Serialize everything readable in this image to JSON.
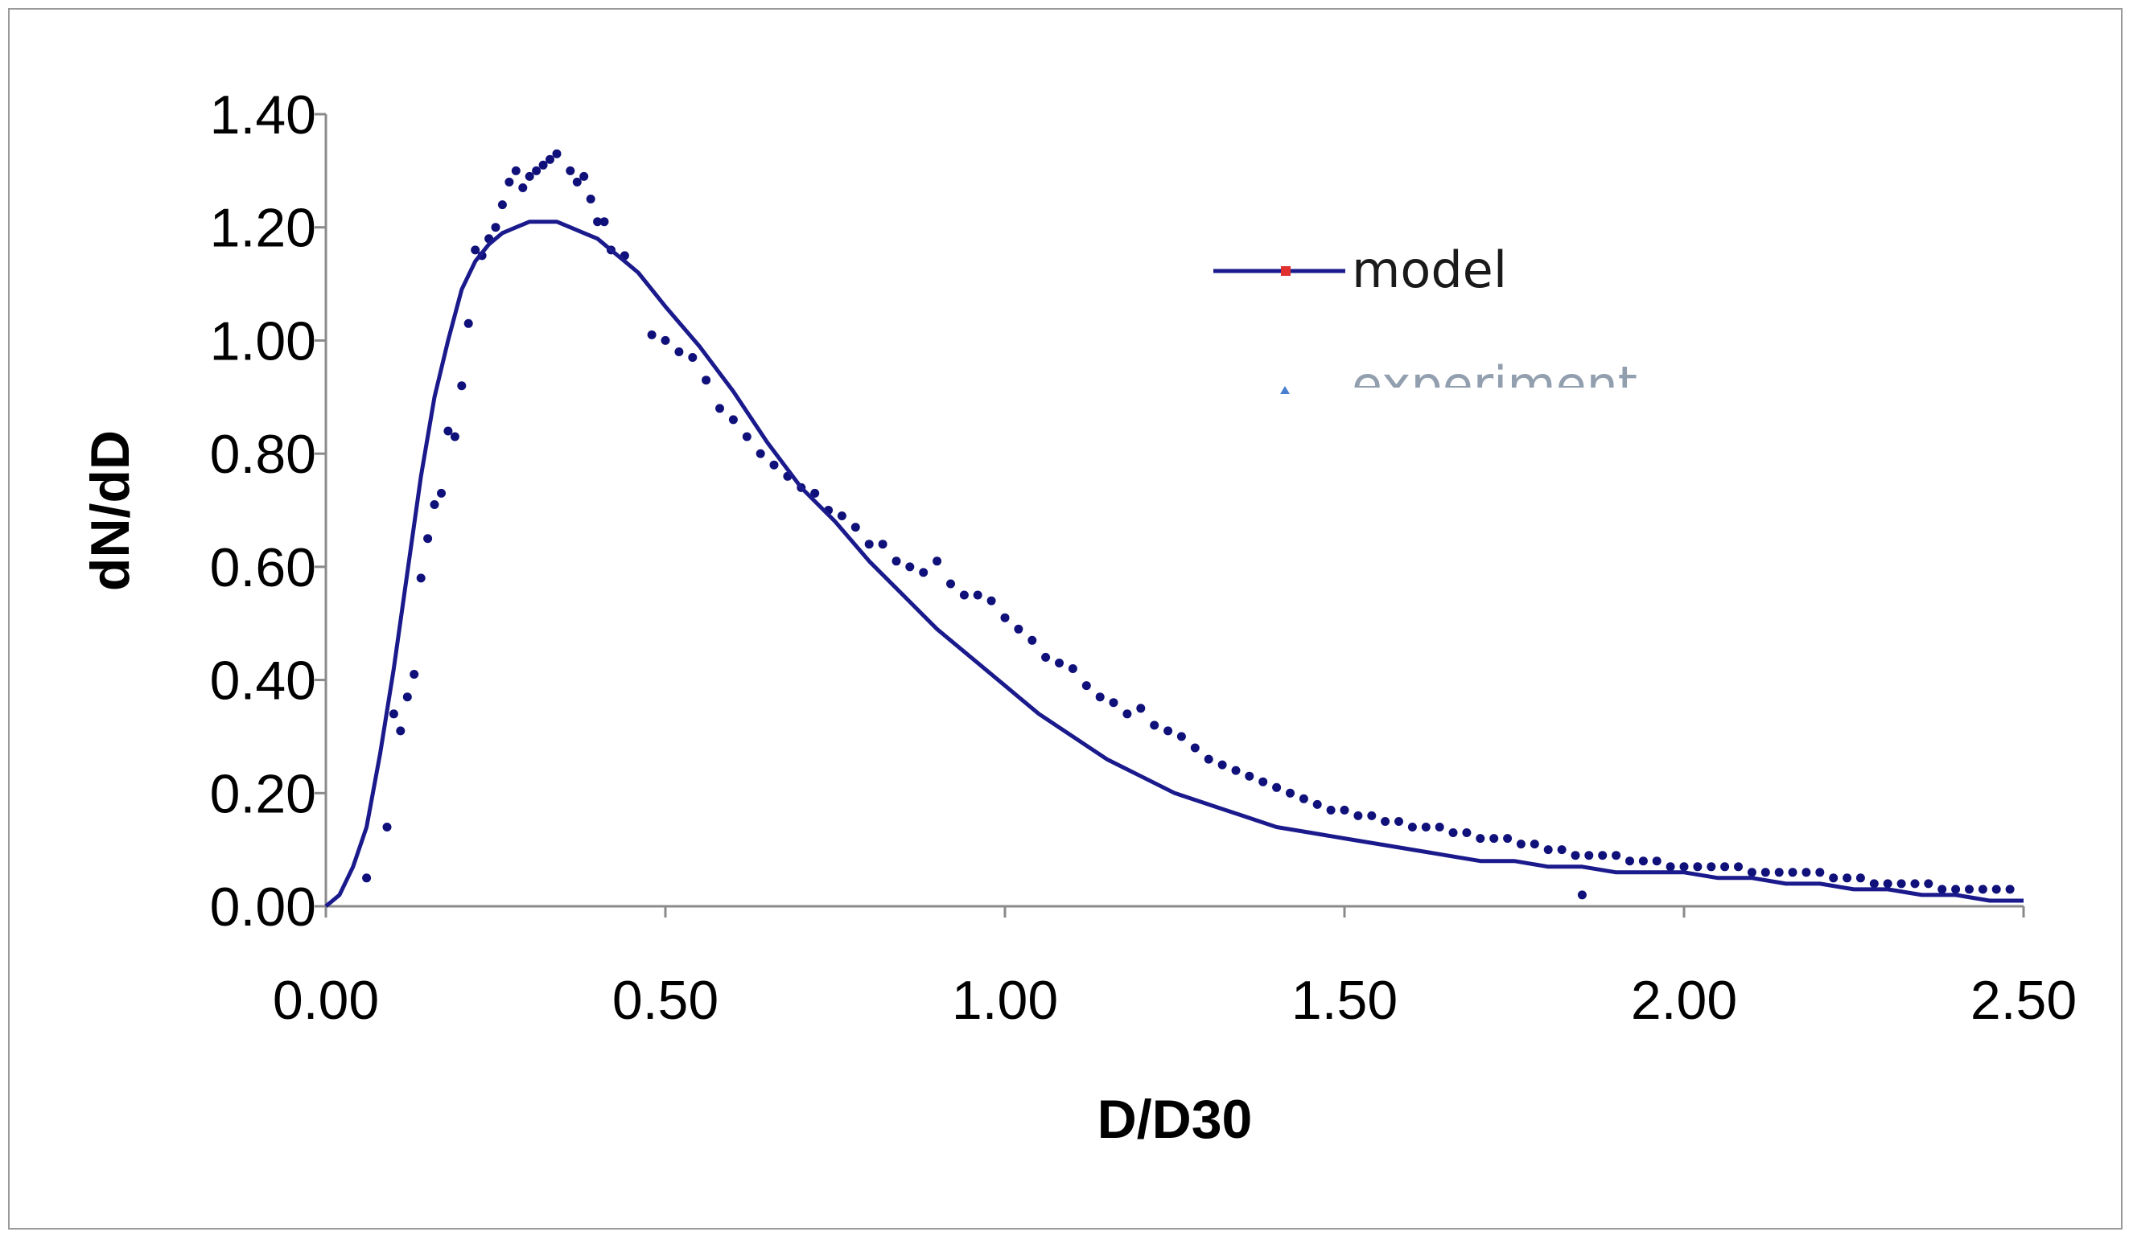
{
  "chart_data": {
    "type": "line",
    "title": "",
    "xlabel": "D/D30",
    "ylabel": "dN/dD",
    "xlim": [
      0,
      2.5
    ],
    "ylim": [
      0,
      1.4
    ],
    "x_ticks": [
      "0.00",
      "0.50",
      "1.00",
      "1.50",
      "2.00",
      "2.50"
    ],
    "y_ticks": [
      "0.00",
      "0.20",
      "0.40",
      "0.60",
      "0.80",
      "1.00",
      "1.20",
      "1.40"
    ],
    "grid": false,
    "legend_position": "upper-right",
    "colors": {
      "model_line": "#1a1a8c",
      "experiment_points": "#10107a",
      "legend_marker_model": "#e03030",
      "legend_marker_experiment": "#4a7fd0"
    },
    "series": [
      {
        "name": "model",
        "kind": "line",
        "x": [
          0.0,
          0.02,
          0.04,
          0.06,
          0.08,
          0.1,
          0.12,
          0.14,
          0.16,
          0.18,
          0.2,
          0.22,
          0.24,
          0.26,
          0.28,
          0.3,
          0.32,
          0.34,
          0.36,
          0.38,
          0.4,
          0.42,
          0.44,
          0.46,
          0.48,
          0.5,
          0.55,
          0.6,
          0.65,
          0.7,
          0.75,
          0.8,
          0.85,
          0.9,
          0.95,
          1.0,
          1.05,
          1.1,
          1.15,
          1.2,
          1.25,
          1.3,
          1.35,
          1.4,
          1.45,
          1.5,
          1.55,
          1.6,
          1.65,
          1.7,
          1.75,
          1.8,
          1.85,
          1.9,
          1.95,
          2.0,
          2.05,
          2.1,
          2.15,
          2.2,
          2.25,
          2.3,
          2.35,
          2.4,
          2.45,
          2.5
        ],
        "y": [
          0.0,
          0.02,
          0.07,
          0.14,
          0.27,
          0.42,
          0.59,
          0.76,
          0.9,
          1.0,
          1.09,
          1.14,
          1.17,
          1.19,
          1.2,
          1.21,
          1.21,
          1.21,
          1.2,
          1.19,
          1.18,
          1.16,
          1.14,
          1.12,
          1.09,
          1.06,
          0.99,
          0.91,
          0.82,
          0.74,
          0.68,
          0.61,
          0.55,
          0.49,
          0.44,
          0.39,
          0.34,
          0.3,
          0.26,
          0.23,
          0.2,
          0.18,
          0.16,
          0.14,
          0.13,
          0.12,
          0.11,
          0.1,
          0.09,
          0.08,
          0.08,
          0.07,
          0.07,
          0.06,
          0.06,
          0.06,
          0.05,
          0.05,
          0.04,
          0.04,
          0.03,
          0.03,
          0.02,
          0.02,
          0.01,
          0.01
        ]
      },
      {
        "name": "experiment",
        "kind": "scatter",
        "x": [
          0.06,
          0.09,
          0.1,
          0.11,
          0.12,
          0.13,
          0.14,
          0.15,
          0.16,
          0.17,
          0.18,
          0.19,
          0.2,
          0.21,
          0.22,
          0.23,
          0.24,
          0.25,
          0.26,
          0.27,
          0.28,
          0.29,
          0.3,
          0.31,
          0.32,
          0.33,
          0.34,
          0.36,
          0.37,
          0.38,
          0.39,
          0.4,
          0.41,
          0.42,
          0.44,
          0.48,
          0.5,
          0.52,
          0.54,
          0.56,
          0.58,
          0.6,
          0.62,
          0.64,
          0.66,
          0.68,
          0.7,
          0.72,
          0.74,
          0.76,
          0.78,
          0.8,
          0.82,
          0.84,
          0.86,
          0.88,
          0.9,
          0.92,
          0.94,
          0.96,
          0.98,
          1.0,
          1.02,
          1.04,
          1.06,
          1.08,
          1.1,
          1.12,
          1.14,
          1.16,
          1.18,
          1.2,
          1.22,
          1.24,
          1.26,
          1.28,
          1.3,
          1.32,
          1.34,
          1.36,
          1.38,
          1.4,
          1.42,
          1.44,
          1.46,
          1.48,
          1.5,
          1.52,
          1.54,
          1.56,
          1.58,
          1.6,
          1.62,
          1.64,
          1.66,
          1.68,
          1.7,
          1.72,
          1.74,
          1.76,
          1.78,
          1.8,
          1.82,
          1.84,
          1.85,
          1.86,
          1.88,
          1.9,
          1.92,
          1.94,
          1.96,
          1.98,
          2.0,
          2.02,
          2.04,
          2.06,
          2.08,
          2.1,
          2.12,
          2.14,
          2.16,
          2.18,
          2.2,
          2.22,
          2.24,
          2.26,
          2.28,
          2.3,
          2.32,
          2.34,
          2.36,
          2.38,
          2.4,
          2.42,
          2.44,
          2.46,
          2.48
        ],
        "y": [
          0.05,
          0.14,
          0.34,
          0.31,
          0.37,
          0.41,
          0.58,
          0.65,
          0.71,
          0.73,
          0.84,
          0.83,
          0.92,
          1.03,
          1.16,
          1.15,
          1.18,
          1.2,
          1.24,
          1.28,
          1.3,
          1.27,
          1.29,
          1.3,
          1.31,
          1.32,
          1.33,
          1.3,
          1.28,
          1.29,
          1.25,
          1.21,
          1.21,
          1.16,
          1.15,
          1.01,
          1.0,
          0.98,
          0.97,
          0.93,
          0.88,
          0.86,
          0.83,
          0.8,
          0.78,
          0.76,
          0.74,
          0.73,
          0.7,
          0.69,
          0.67,
          0.64,
          0.64,
          0.61,
          0.6,
          0.59,
          0.61,
          0.57,
          0.55,
          0.55,
          0.54,
          0.51,
          0.49,
          0.47,
          0.44,
          0.43,
          0.42,
          0.39,
          0.37,
          0.36,
          0.34,
          0.35,
          0.32,
          0.31,
          0.3,
          0.28,
          0.26,
          0.25,
          0.24,
          0.23,
          0.22,
          0.21,
          0.2,
          0.19,
          0.18,
          0.17,
          0.17,
          0.16,
          0.16,
          0.15,
          0.15,
          0.14,
          0.14,
          0.14,
          0.13,
          0.13,
          0.12,
          0.12,
          0.12,
          0.11,
          0.11,
          0.1,
          0.1,
          0.09,
          0.02,
          0.09,
          0.09,
          0.09,
          0.08,
          0.08,
          0.08,
          0.07,
          0.07,
          0.07,
          0.07,
          0.07,
          0.07,
          0.06,
          0.06,
          0.06,
          0.06,
          0.06,
          0.06,
          0.05,
          0.05,
          0.05,
          0.04,
          0.04,
          0.04,
          0.04,
          0.04,
          0.03,
          0.03,
          0.03,
          0.03,
          0.03,
          0.03
        ]
      }
    ]
  }
}
